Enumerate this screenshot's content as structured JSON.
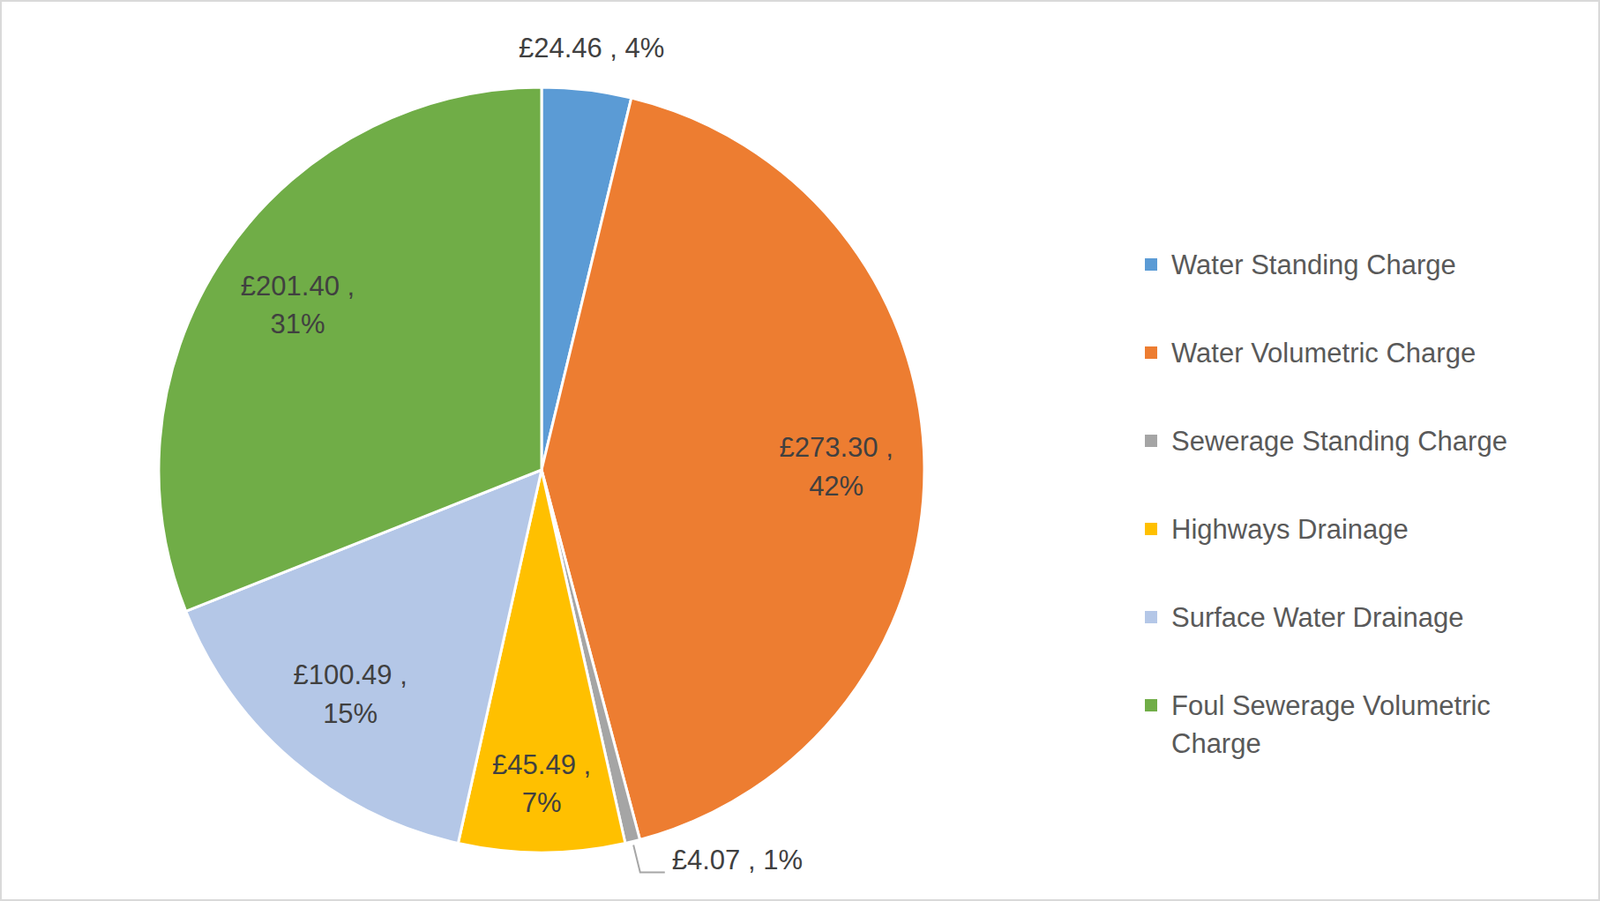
{
  "chart_data": {
    "type": "pie",
    "categories": [
      "Water Standing Charge",
      "Water Volumetric Charge",
      "Sewerage Standing Charge",
      "Highways Drainage",
      "Surface Water Drainage",
      "Foul Sewerage Volumetric Charge"
    ],
    "values": [
      24.46,
      273.3,
      4.07,
      45.49,
      100.49,
      201.4
    ],
    "value_labels": [
      "£24.46 , 4%",
      "£273.30 , 42%",
      "£4.07 , 1%",
      "£45.49 , 7%",
      "£100.49 , 15%",
      "£201.40 , 31%"
    ],
    "colors": [
      "#5b9bd5",
      "#ed7d31",
      "#a5a5a5",
      "#ffc000",
      "#b4c7e7",
      "#70ad47"
    ],
    "data_labels": true,
    "legend": "right"
  }
}
